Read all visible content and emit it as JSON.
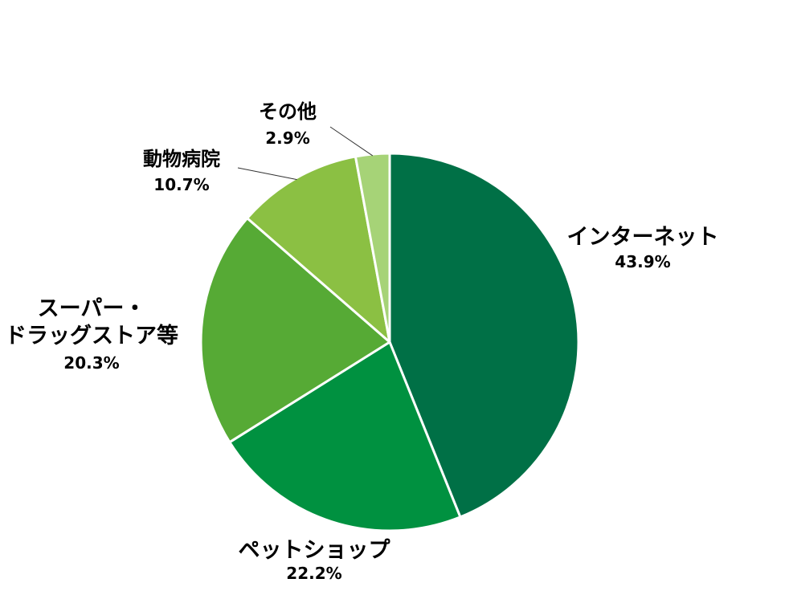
{
  "chart_data": {
    "type": "pie",
    "title": "",
    "slices": [
      {
        "label": "インターネット",
        "value": 43.9,
        "value_label": "43.9%",
        "color": "#007046"
      },
      {
        "label": "ペットショップ",
        "value": 22.2,
        "value_label": "22.2%",
        "color": "#009140"
      },
      {
        "label_lines": [
          "スーパー・",
          "ドラッグストア等"
        ],
        "label": "スーパー・ドラッグストア等",
        "value": 20.3,
        "value_label": "20.3%",
        "color": "#56AA35"
      },
      {
        "label": "動物病院",
        "value": 10.7,
        "value_label": "10.7%",
        "color": "#8BC043"
      },
      {
        "label": "その他",
        "value": 2.9,
        "value_label": "2.9%",
        "color": "#A6D377"
      }
    ],
    "start_angle": "12 o'clock",
    "direction": "clockwise",
    "slice_border_color": "#ffffff",
    "legend": "none"
  }
}
